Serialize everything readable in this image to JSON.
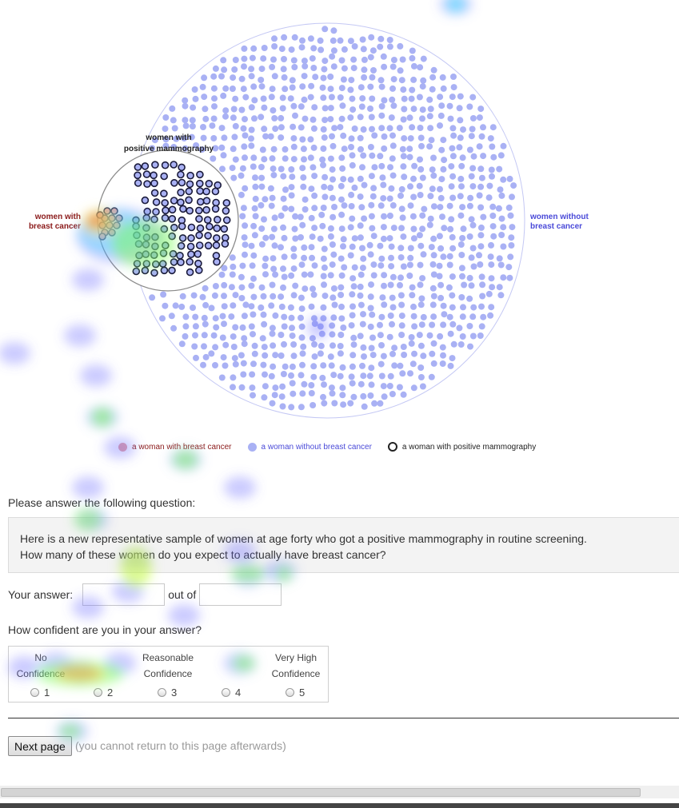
{
  "diagram": {
    "label_positive": [
      "women with",
      "positive mammography"
    ],
    "label_cancer": [
      "women with",
      "breast cancer"
    ],
    "label_without": [
      "women without",
      "breast cancer"
    ],
    "colors": {
      "cancer": "#e9a3a3",
      "without": "#a9b1f4",
      "cancer_text": "#8b1a1a",
      "without_text": "#4a4ad8"
    }
  },
  "legend": {
    "cancer": "a woman with breast cancer",
    "without": "a woman without breast cancer",
    "positive": "a woman with positive mammography"
  },
  "question": {
    "intro": "Please answer the following question:",
    "line1": "Here is a new representative sample of women at age forty who got a positive mammography in routine screening.",
    "line2": "How many of these women do you expect to actually have breast cancer?"
  },
  "answer": {
    "label": "Your answer:",
    "out_of": "out of",
    "value1": "",
    "value2": ""
  },
  "confidence": {
    "question": "How confident are you in your answer?",
    "labels": [
      [
        "No",
        "Confidence"
      ],
      [
        "Reasonable",
        "Confidence"
      ],
      [
        "Very High",
        "Confidence"
      ]
    ],
    "options": [
      "1",
      "2",
      "3",
      "4",
      "5"
    ]
  },
  "next_button": "Next page",
  "note": "(you cannot return to this page afterwards)"
}
